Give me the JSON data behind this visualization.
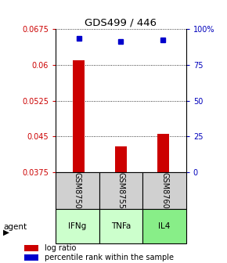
{
  "title": "GDS499 / 446",
  "samples": [
    "GSM8750",
    "GSM8755",
    "GSM8760"
  ],
  "agents": [
    "IFNg",
    "TNFa",
    "IL4"
  ],
  "bar_values": [
    0.061,
    0.043,
    0.0455
  ],
  "percentile_values": [
    0.0656,
    0.0648,
    0.0652
  ],
  "ylim": [
    0.0375,
    0.0675
  ],
  "yticks": [
    0.0375,
    0.045,
    0.0525,
    0.06,
    0.0675
  ],
  "ytick_labels_left": [
    "0.0375",
    "0.045",
    "0.0525",
    "0.06",
    "0.0675"
  ],
  "ytick_labels_right": [
    "0",
    "25",
    "50",
    "75",
    "100%"
  ],
  "bar_color": "#cc0000",
  "dot_color": "#0000cc",
  "sample_box_color": "#d0d0d0",
  "agent_colors": [
    "#ccffcc",
    "#ccffcc",
    "#88ee88"
  ],
  "left_tick_color": "#cc0000",
  "right_tick_color": "#0000bb",
  "legend_bar_label": "log ratio",
  "legend_dot_label": "percentile rank within the sample"
}
